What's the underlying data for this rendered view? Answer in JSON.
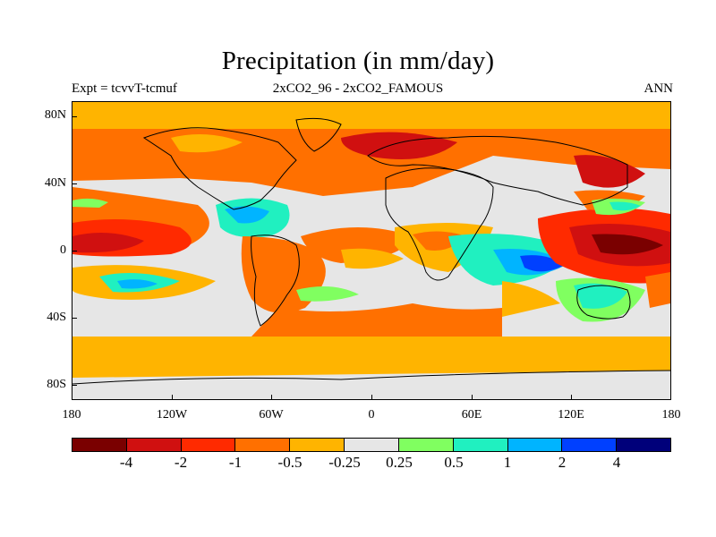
{
  "title": "Precipitation (in mm/day)",
  "subtitle_left": "Expt = tcvvT-tcmuf",
  "subtitle_center": "2xCO2_96 - 2xCO2_FAMOUS",
  "subtitle_right": "ANN",
  "y_ticks": [
    "80N",
    "40N",
    "0",
    "40S",
    "80S"
  ],
  "x_ticks": [
    "180",
    "120W",
    "60W",
    "0",
    "60E",
    "120E",
    "180"
  ],
  "legend": {
    "colors": [
      "#7a0000",
      "#d01010",
      "#ff2a00",
      "#ff7000",
      "#ffb400",
      "#e6e6e6",
      "#80ff60",
      "#20f0c0",
      "#00b4ff",
      "#0040ff",
      "#00007a"
    ],
    "labels": [
      "-4",
      "-2",
      "-1",
      "-0.5",
      "-0.25",
      "0.25",
      "0.5",
      "1",
      "2",
      "4"
    ]
  }
}
